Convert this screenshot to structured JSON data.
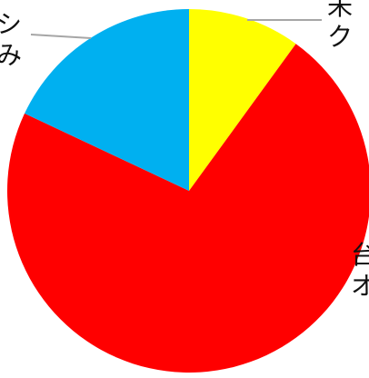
{
  "chart_data": {
    "type": "pie",
    "slices": [
      {
        "value": 10,
        "color": "#FFFF00",
        "label_lines": [
          "未",
          "ク"
        ]
      },
      {
        "value": 72,
        "color": "#FF0000",
        "label_lines": [
          "台",
          "オ"
        ]
      },
      {
        "value": 18,
        "color": "#00B0F0",
        "label_lines": [
          "シ",
          "み"
        ]
      }
    ],
    "start_angle_deg": 0,
    "direction": "clockwise"
  }
}
